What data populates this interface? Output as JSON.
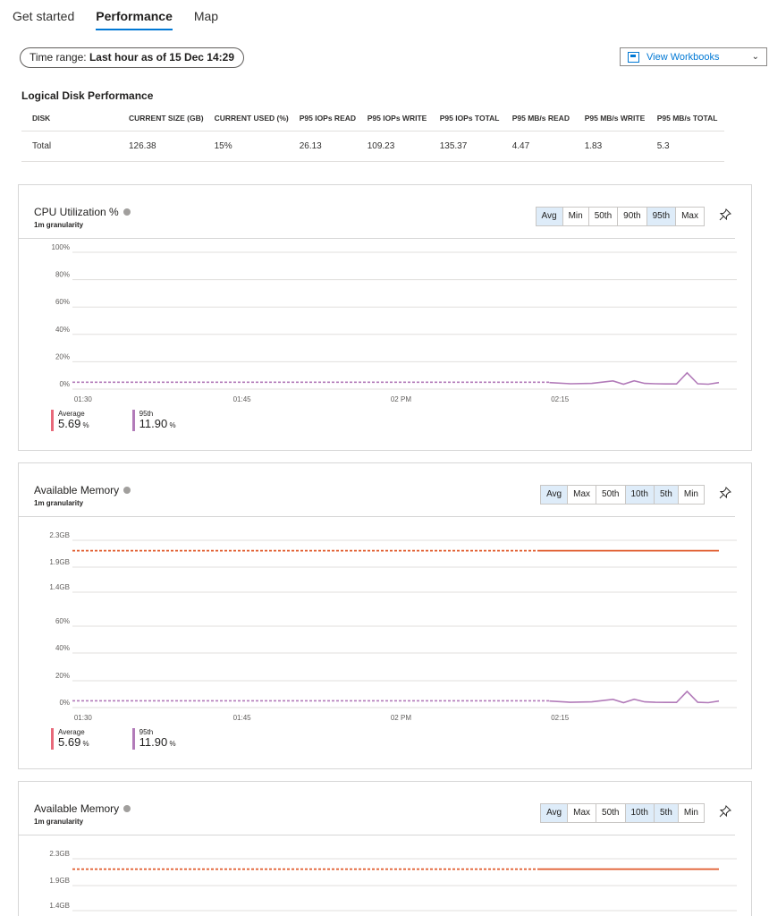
{
  "tabs": [
    {
      "label": "Get started",
      "active": false
    },
    {
      "label": "Performance",
      "active": true
    },
    {
      "label": "Map",
      "active": false
    }
  ],
  "time_range": {
    "prefix": "Time range:",
    "value": "Last hour as of 15 Dec 14:29"
  },
  "workbooks": {
    "label": "View Workbooks"
  },
  "disk": {
    "title": "Logical Disk Performance",
    "columns": [
      "DISK",
      "CURRENT SIZE (GB)",
      "CURRENT USED (%)",
      "P95 IOPs READ",
      "P95 IOPs WRITE",
      "P95 IOPs TOTAL",
      "P95 MB/s READ",
      "P95 MB/s WRITE",
      "P95 MB/s TOTAL"
    ],
    "rows": [
      [
        "Total",
        "126.38",
        "15%",
        "26.13",
        "109.23",
        "135.37",
        "4.47",
        "1.83",
        "5.3"
      ]
    ]
  },
  "colors": {
    "average": "#e8697a",
    "p95": "#b27bb9",
    "memory": "#e05a2b",
    "accent": "#0078d4"
  },
  "cards": [
    {
      "title": "CPU Utilization %",
      "granularity": "1m granularity",
      "aggs": [
        {
          "label": "Avg",
          "on": true
        },
        {
          "label": "Min",
          "on": false
        },
        {
          "label": "50th",
          "on": false
        },
        {
          "label": "90th",
          "on": false
        },
        {
          "label": "95th",
          "on": true
        },
        {
          "label": "Max",
          "on": false
        }
      ],
      "legend": [
        {
          "name": "Average",
          "value": "5.69",
          "unit": "%"
        },
        {
          "name": "95th",
          "value": "11.90",
          "unit": "%"
        }
      ]
    },
    {
      "title": "Available Memory",
      "granularity": "1m granularity",
      "aggs": [
        {
          "label": "Avg",
          "on": true
        },
        {
          "label": "Max",
          "on": false
        },
        {
          "label": "50th",
          "on": false
        },
        {
          "label": "10th",
          "on": true
        },
        {
          "label": "5th",
          "on": true
        },
        {
          "label": "Min",
          "on": false
        }
      ],
      "legend": [
        {
          "name": "Average",
          "value": "5.69",
          "unit": "%"
        },
        {
          "name": "95th",
          "value": "11.90",
          "unit": "%"
        }
      ]
    },
    {
      "title": "Available Memory",
      "granularity": "1m granularity",
      "aggs": [
        {
          "label": "Avg",
          "on": true
        },
        {
          "label": "Max",
          "on": false
        },
        {
          "label": "50th",
          "on": false
        },
        {
          "label": "10th",
          "on": true
        },
        {
          "label": "5th",
          "on": true
        },
        {
          "label": "Min",
          "on": false
        }
      ],
      "legend": []
    }
  ],
  "chart_data": [
    {
      "type": "line",
      "x_ticks": [
        "01:30",
        "01:45",
        "02 PM",
        "02:15"
      ],
      "y_ticks": [
        "0%",
        "20%",
        "40%",
        "60%",
        "80%",
        "100%"
      ],
      "ylim": [
        0,
        100
      ],
      "series": [
        {
          "name": "95th",
          "style": "dashed",
          "x": [
            "01:29",
            "02:14"
          ],
          "y": [
            5,
            5
          ]
        },
        {
          "name": "95th",
          "style": "solid",
          "x": [
            "02:14",
            "02:16",
            "02:18",
            "02:20",
            "02:21",
            "02:22",
            "02:23",
            "02:24",
            "02:25",
            "02:26",
            "02:27",
            "02:28",
            "02:29",
            "02:30"
          ],
          "y": [
            4.8,
            3.9,
            4.2,
            6.0,
            3.6,
            6.1,
            4.2,
            3.9,
            3.8,
            3.8,
            11.9,
            3.9,
            3.6,
            4.8
          ]
        }
      ]
    },
    {
      "type": "line",
      "x_ticks": [
        "01:30",
        "01:45",
        "02 PM",
        "02:15"
      ],
      "y_ticks": [
        "0%",
        "20%",
        "40%",
        "60%",
        "1.4GB",
        "1.9GB",
        "2.3GB"
      ],
      "series": [
        {
          "name": "Available Memory",
          "style": "dashed",
          "x": [
            "01:29",
            "02:13"
          ],
          "y": [
            2.12,
            2.12
          ]
        },
        {
          "name": "Available Memory",
          "style": "solid",
          "x": [
            "02:13",
            "02:30"
          ],
          "y": [
            2.12,
            2.12
          ]
        },
        {
          "name": "95th",
          "style": "dashed",
          "x": [
            "01:29",
            "02:14"
          ],
          "y": [
            5,
            5
          ]
        },
        {
          "name": "95th",
          "style": "solid",
          "x": [
            "02:14",
            "02:16",
            "02:18",
            "02:20",
            "02:21",
            "02:22",
            "02:23",
            "02:24",
            "02:25",
            "02:26",
            "02:27",
            "02:28",
            "02:29",
            "02:30"
          ],
          "y": [
            4.8,
            3.9,
            4.2,
            6.0,
            3.6,
            6.1,
            4.2,
            3.9,
            3.8,
            3.8,
            11.9,
            3.9,
            3.6,
            4.8
          ]
        }
      ]
    },
    {
      "type": "line",
      "y_ticks": [
        "1.4GB",
        "1.9GB",
        "2.3GB"
      ],
      "series": [
        {
          "name": "Available Memory",
          "style": "dashed",
          "x": [
            "01:29",
            "02:13"
          ],
          "y": [
            2.12,
            2.12
          ]
        },
        {
          "name": "Available Memory",
          "style": "solid",
          "x": [
            "02:13",
            "02:30"
          ],
          "y": [
            2.12,
            2.12
          ]
        }
      ]
    }
  ]
}
